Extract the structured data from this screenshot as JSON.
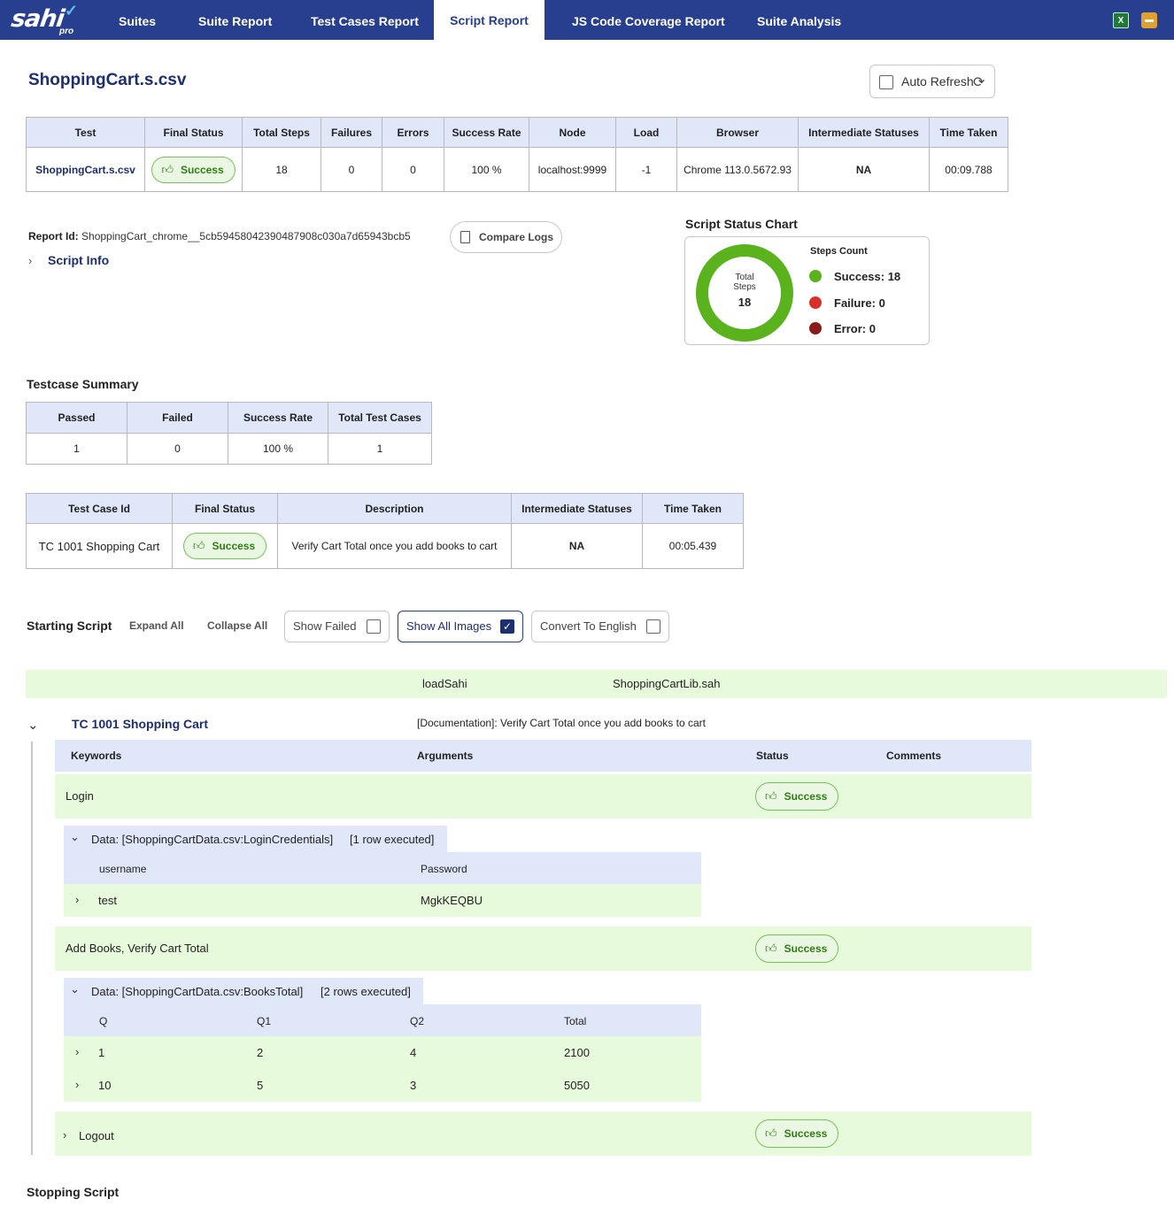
{
  "nav": {
    "logo": "sahi",
    "logo_sub": "pro",
    "tabs": [
      "Suites",
      "Suite Report",
      "Test Cases Report",
      "Script Report",
      "JS Code Coverage Report",
      "Suite Analysis"
    ],
    "active_tab": "Script Report",
    "icons": [
      "excel-icon",
      "archive-icon"
    ]
  },
  "header": {
    "title": "ShoppingCart.s.csv",
    "auto_refresh_label": "Auto Refresh",
    "auto_refresh_checked": false
  },
  "summary_table": {
    "headers": [
      "Test",
      "Final Status",
      "Total Steps",
      "Failures",
      "Errors",
      "Success Rate",
      "Node",
      "Load",
      "Browser",
      "Intermediate Statuses",
      "Time Taken"
    ],
    "row": {
      "test": "ShoppingCart.s.csv",
      "final_status": "Success",
      "total_steps": "18",
      "failures": "0",
      "errors": "0",
      "success_rate": "100 %",
      "node": "localhost:9999",
      "load": "-1",
      "browser": "Chrome 113.0.5672.93",
      "intermediate": "NA",
      "time_taken": "00:09.788"
    }
  },
  "report": {
    "id_label": "Report Id:",
    "id_value": "ShoppingCart_chrome__5cb59458042390487908c030a7d65943bcb5",
    "compare_logs": "Compare Logs",
    "script_info": "Script Info"
  },
  "chart": {
    "title": "Script Status Chart",
    "center_label_1": "Total",
    "center_label_2": "Steps",
    "center_value": "18",
    "legend_title": "Steps Count",
    "legend": [
      {
        "label": "Success: 18",
        "color": "#5ab21c"
      },
      {
        "label": "Failure: 0",
        "color": "#d9302a"
      },
      {
        "label": "Error: 0",
        "color": "#8b1a1a"
      }
    ]
  },
  "chart_data": {
    "type": "pie",
    "title": "Script Status Chart",
    "categories": [
      "Success",
      "Failure",
      "Error"
    ],
    "values": [
      18,
      0,
      0
    ],
    "colors": [
      "#5ab21c",
      "#d9302a",
      "#8b1a1a"
    ]
  },
  "testcase_summary": {
    "title": "Testcase Summary",
    "headers": [
      "Passed",
      "Failed",
      "Success Rate",
      "Total Test Cases"
    ],
    "row": [
      "1",
      "0",
      "100 %",
      "1"
    ]
  },
  "testcase_table": {
    "headers": [
      "Test Case Id",
      "Final Status",
      "Description",
      "Intermediate Statuses",
      "Time Taken"
    ],
    "row": {
      "id": "TC 1001 Shopping Cart",
      "status": "Success",
      "description": "Verify Cart Total once you add books to cart",
      "intermediate": "NA",
      "time": "00:05.439"
    }
  },
  "toolbar": {
    "starting_script": "Starting Script",
    "expand_all": "Expand All",
    "collapse_all": "Collapse All",
    "show_failed": "Show Failed",
    "show_all_images": "Show All Images",
    "convert_to_english": "Convert To English",
    "show_failed_checked": false,
    "show_all_images_checked": true,
    "convert_checked": false
  },
  "steps": {
    "load_keyword": "loadSahi",
    "load_arg": "ShoppingCartLib.sah",
    "testcase_name": "TC 1001 Shopping Cart",
    "testcase_doc": "[Documentation]: Verify Cart Total once you add books to cart",
    "columns": [
      "Keywords",
      "Arguments",
      "Status",
      "Comments"
    ],
    "login": {
      "keyword": "Login",
      "status": "Success",
      "data_label": "Data: [ShoppingCartData.csv:LoginCredentials]",
      "data_count": "[1 row executed]",
      "data_headers": [
        "username",
        "Password"
      ],
      "data_rows": [
        [
          "test",
          "MgkKEQBU"
        ]
      ]
    },
    "books": {
      "keyword": "Add Books, Verify Cart Total",
      "status": "Success",
      "data_label": "Data: [ShoppingCartData.csv:BooksTotal]",
      "data_count": "[2 rows executed]",
      "data_headers": [
        "Q",
        "Q1",
        "Q2",
        "Total"
      ],
      "data_rows": [
        [
          "1",
          "2",
          "4",
          "2100"
        ],
        [
          "10",
          "5",
          "3",
          "5050"
        ]
      ]
    },
    "logout": {
      "keyword": "Logout",
      "status": "Success"
    },
    "stopping_script": "Stopping Script"
  }
}
